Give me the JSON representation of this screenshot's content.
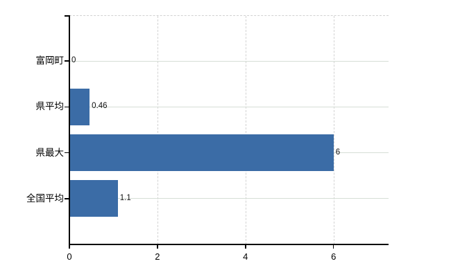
{
  "chart_data": {
    "type": "bar",
    "orientation": "horizontal",
    "title": "",
    "categories": [
      "富岡町",
      "県平均",
      "県最大",
      "全国平均"
    ],
    "values": [
      0,
      0.46,
      6,
      1.1
    ],
    "value_labels": [
      "0",
      "0.46",
      "6",
      "1.1"
    ],
    "xlim": [
      0,
      7.25
    ],
    "x_ticks": [
      0,
      2,
      4,
      6
    ],
    "grid": {
      "vertical_style": "dashed",
      "horizontal_style": "solid",
      "top_border": "dashed"
    },
    "legend": "none",
    "bar_color": "#3b6ca6"
  },
  "colors": {
    "bar": "#3b6ca6",
    "axis": "#000000",
    "grid_vertical": "#d2d2d2",
    "grid_horizontal": "#d6ded6",
    "text": "#000000",
    "background": "#ffffff"
  }
}
